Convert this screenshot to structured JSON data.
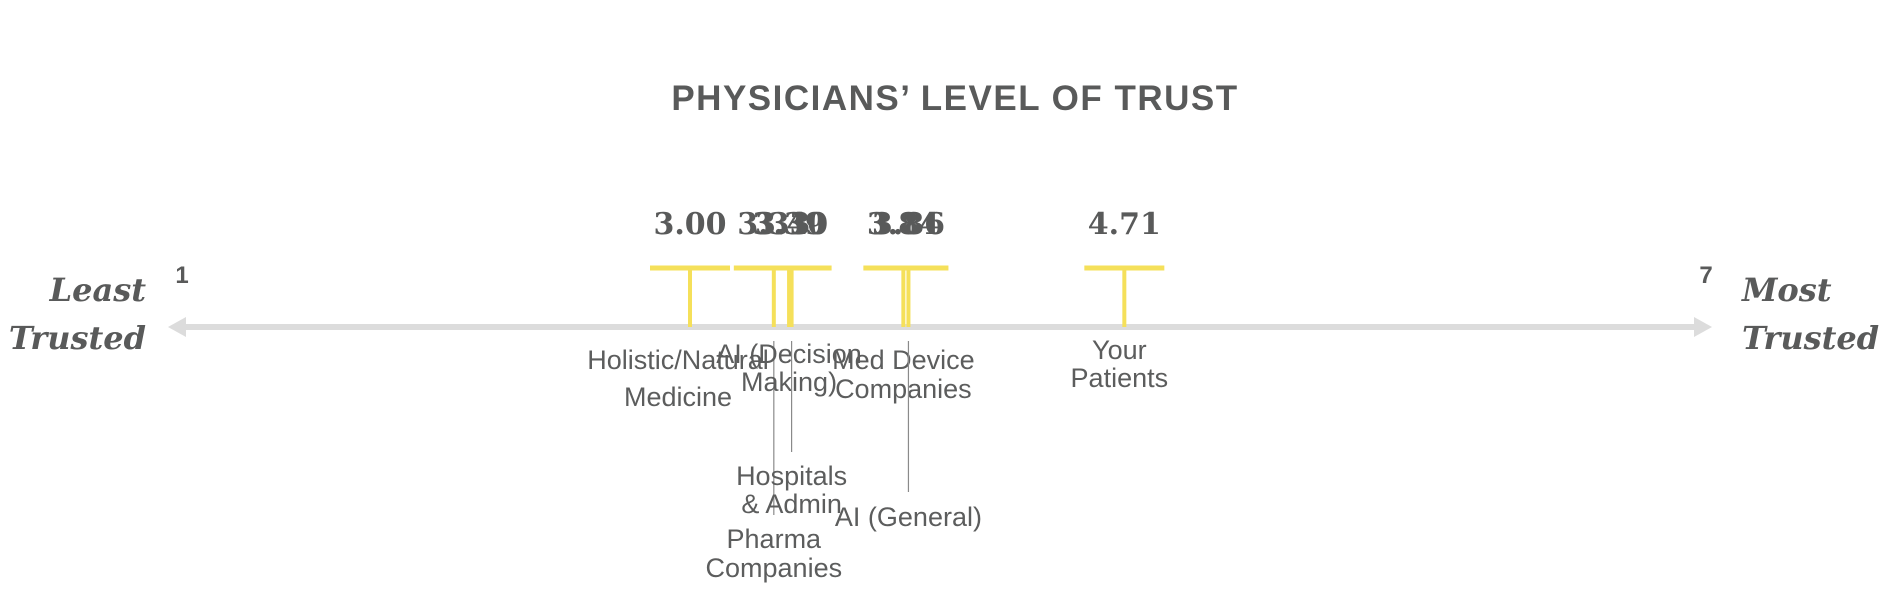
{
  "chart_data": {
    "type": "scatter",
    "title": "PHYSICIANS’ LEVEL OF TRUST",
    "xlim": [
      1,
      7
    ],
    "x_min_label": "1",
    "x_max_label": "7",
    "left_label": [
      "Least",
      "Trusted"
    ],
    "right_label": [
      "Most",
      "Trusted"
    ],
    "points": [
      {
        "x": 3.0,
        "value_label": "3.00",
        "label": [
          "Holistic/Natural",
          "Medicine"
        ]
      },
      {
        "x": 3.33,
        "value_label": "3.33",
        "label": [
          "Pharma",
          "Companies"
        ]
      },
      {
        "x": 3.39,
        "value_label": "3.39",
        "label": [
          "AI (Decision",
          "Making)"
        ]
      },
      {
        "x": 3.4,
        "value_label": "3.40",
        "label": [
          "Hospitals",
          "& Admin"
        ]
      },
      {
        "x": 3.84,
        "value_label": "3.84",
        "label": [
          "Med Device",
          "Companies"
        ]
      },
      {
        "x": 3.86,
        "value_label": "3.86",
        "label": [
          "AI (General)"
        ]
      },
      {
        "x": 4.71,
        "value_label": "4.71",
        "label": [
          "Your",
          "Patients"
        ]
      }
    ],
    "colors": {
      "marker": "#f5e05a",
      "axis": "#dcdcdc",
      "text": "#595a5a",
      "leader": "#8a8a8a"
    }
  }
}
